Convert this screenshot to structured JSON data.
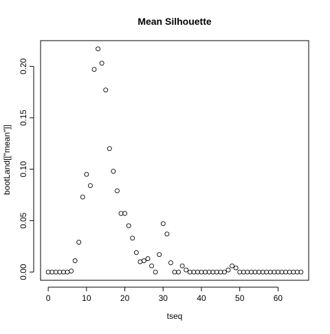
{
  "chart_data": {
    "type": "scatter",
    "title": "Mean Silhouette",
    "xlabel": "tseq",
    "ylabel": "bootLand[[\"mean\"]]",
    "xlim": [
      -2,
      68
    ],
    "ylim": [
      -0.008,
      0.225
    ],
    "x_ticks": [
      0,
      10,
      20,
      30,
      40,
      50,
      60
    ],
    "y_ticks": [
      0.0,
      0.05,
      0.1,
      0.15,
      0.2
    ],
    "x_tick_labels": [
      "0",
      "10",
      "20",
      "30",
      "40",
      "50",
      "60"
    ],
    "y_tick_labels": [
      "0.00",
      "0.05",
      "0.10",
      "0.15",
      "0.20"
    ],
    "grid": false,
    "marker": "open-circle",
    "points": [
      {
        "x": 0,
        "y": 0.0
      },
      {
        "x": 1,
        "y": 0.0
      },
      {
        "x": 2,
        "y": 0.0
      },
      {
        "x": 3,
        "y": 0.0
      },
      {
        "x": 4,
        "y": 0.0
      },
      {
        "x": 5,
        "y": 0.0
      },
      {
        "x": 6,
        "y": 0.001
      },
      {
        "x": 7,
        "y": 0.011
      },
      {
        "x": 8,
        "y": 0.029
      },
      {
        "x": 9,
        "y": 0.073
      },
      {
        "x": 10,
        "y": 0.095
      },
      {
        "x": 11,
        "y": 0.084
      },
      {
        "x": 12,
        "y": 0.197
      },
      {
        "x": 13,
        "y": 0.217
      },
      {
        "x": 14,
        "y": 0.203
      },
      {
        "x": 15,
        "y": 0.177
      },
      {
        "x": 16,
        "y": 0.12
      },
      {
        "x": 17,
        "y": 0.098
      },
      {
        "x": 18,
        "y": 0.079
      },
      {
        "x": 19,
        "y": 0.057
      },
      {
        "x": 20,
        "y": 0.057
      },
      {
        "x": 21,
        "y": 0.045
      },
      {
        "x": 22,
        "y": 0.033
      },
      {
        "x": 23,
        "y": 0.019
      },
      {
        "x": 24,
        "y": 0.01
      },
      {
        "x": 25,
        "y": 0.011
      },
      {
        "x": 26,
        "y": 0.013
      },
      {
        "x": 27,
        "y": 0.006
      },
      {
        "x": 28,
        "y": 0.0
      },
      {
        "x": 29,
        "y": 0.017
      },
      {
        "x": 30,
        "y": 0.047
      },
      {
        "x": 31,
        "y": 0.037
      },
      {
        "x": 32,
        "y": 0.009
      },
      {
        "x": 33,
        "y": 0.0
      },
      {
        "x": 34,
        "y": 0.0
      },
      {
        "x": 35,
        "y": 0.006
      },
      {
        "x": 36,
        "y": 0.002
      },
      {
        "x": 37,
        "y": 0.0
      },
      {
        "x": 38,
        "y": 0.0
      },
      {
        "x": 39,
        "y": 0.0
      },
      {
        "x": 40,
        "y": 0.0
      },
      {
        "x": 41,
        "y": 0.0
      },
      {
        "x": 42,
        "y": 0.0
      },
      {
        "x": 43,
        "y": 0.0
      },
      {
        "x": 44,
        "y": 0.0
      },
      {
        "x": 45,
        "y": 0.0
      },
      {
        "x": 46,
        "y": 0.0
      },
      {
        "x": 47,
        "y": 0.002
      },
      {
        "x": 48,
        "y": 0.006
      },
      {
        "x": 49,
        "y": 0.004
      },
      {
        "x": 50,
        "y": 0.0
      },
      {
        "x": 51,
        "y": 0.0
      },
      {
        "x": 52,
        "y": 0.0
      },
      {
        "x": 53,
        "y": 0.0
      },
      {
        "x": 54,
        "y": 0.0
      },
      {
        "x": 55,
        "y": 0.0
      },
      {
        "x": 56,
        "y": 0.0
      },
      {
        "x": 57,
        "y": 0.0
      },
      {
        "x": 58,
        "y": 0.0
      },
      {
        "x": 59,
        "y": 0.0
      },
      {
        "x": 60,
        "y": 0.0
      },
      {
        "x": 61,
        "y": 0.0
      },
      {
        "x": 62,
        "y": 0.0
      },
      {
        "x": 63,
        "y": 0.0
      },
      {
        "x": 64,
        "y": 0.0
      },
      {
        "x": 65,
        "y": 0.0
      },
      {
        "x": 66,
        "y": 0.0
      }
    ],
    "colors": {
      "marker": "#000000",
      "axis": "#000000",
      "background": "#ffffff"
    }
  }
}
